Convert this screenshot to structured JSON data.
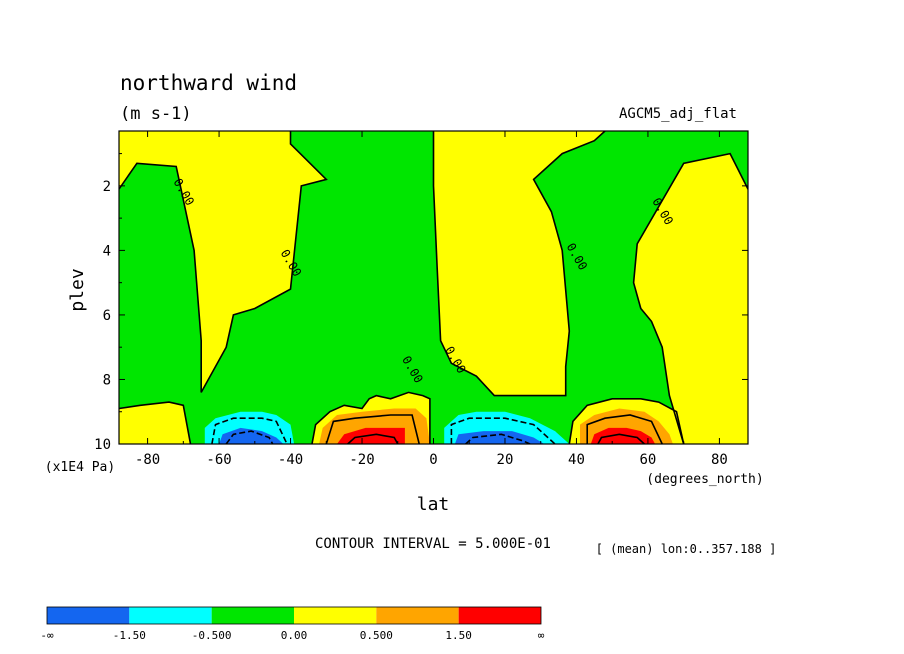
{
  "chart_data": {
    "type": "heatmap",
    "title": "northward wind",
    "units": "(m s-1)",
    "dataset": "AGCM5_adj_flat",
    "xlabel": "lat",
    "x_units": "(degrees_north)",
    "ylabel": "plev",
    "y_units": "(x1E4 Pa)",
    "xlim": [
      -88,
      88
    ],
    "ylim": [
      0.3,
      10
    ],
    "y_inverted": true,
    "x_ticks": [
      -80,
      -60,
      -40,
      -20,
      0,
      20,
      40,
      60,
      80
    ],
    "x_tick_labels": [
      "-80",
      "-60",
      "-40",
      "-20",
      "0",
      "20",
      "40",
      "60",
      "80"
    ],
    "y_ticks": [
      2,
      4,
      6,
      8,
      10
    ],
    "y_tick_labels": [
      "2",
      "4",
      "6",
      "8",
      "10"
    ],
    "contour_interval_text": "CONTOUR INTERVAL = 5.000E-01",
    "mean_text": "[ (mean) lon:0..357.188 ]",
    "contour_labels": [
      {
        "text": "0.00",
        "lat": -70,
        "plev": 2.2
      },
      {
        "text": "0.00",
        "lat": -40,
        "plev": 4.4
      },
      {
        "text": "0.00",
        "lat": -6,
        "plev": 7.7
      },
      {
        "text": "0.00",
        "lat": 6,
        "plev": 7.4
      },
      {
        "text": "0.00",
        "lat": 40,
        "plev": 4.2
      },
      {
        "text": "0.00",
        "lat": 64,
        "plev": 2.8
      }
    ],
    "regions": [
      {
        "level": "pos",
        "points": [
          [
            -88,
            0.3
          ],
          [
            -40,
            0.3
          ],
          [
            -40,
            0.7
          ],
          [
            -30,
            1.8
          ],
          [
            -37,
            2.0
          ],
          [
            -40,
            5.2
          ],
          [
            -50,
            5.8
          ],
          [
            -56,
            6.0
          ],
          [
            -58,
            7.0
          ],
          [
            -65,
            8.4
          ],
          [
            -65,
            6.8
          ],
          [
            -67,
            4.0
          ],
          [
            -72,
            1.4
          ],
          [
            -83,
            1.3
          ],
          [
            -88,
            2.1
          ]
        ]
      },
      {
        "level": "pos",
        "points": [
          [
            0,
            0.3
          ],
          [
            0,
            2.0
          ],
          [
            1,
            4.5
          ],
          [
            2,
            6.8
          ],
          [
            5,
            7.5
          ],
          [
            12,
            7.9
          ],
          [
            17,
            8.5
          ],
          [
            28,
            8.5
          ],
          [
            33,
            8.5
          ],
          [
            37,
            8.5
          ],
          [
            37,
            7.6
          ],
          [
            38,
            6.5
          ],
          [
            36,
            4.0
          ],
          [
            33,
            2.8
          ],
          [
            28,
            1.8
          ],
          [
            36,
            1.0
          ],
          [
            45,
            0.6
          ],
          [
            48,
            0.3
          ]
        ]
      },
      {
        "level": "pos",
        "points": [
          [
            70,
            10
          ],
          [
            66,
            8.5
          ],
          [
            64,
            7.0
          ],
          [
            61,
            6.2
          ],
          [
            58,
            5.8
          ],
          [
            56,
            5.0
          ],
          [
            57,
            3.8
          ],
          [
            70,
            1.3
          ],
          [
            83,
            1.0
          ],
          [
            88,
            2.1
          ],
          [
            88,
            10
          ]
        ]
      },
      {
        "level": "pos",
        "points": [
          [
            -88,
            10
          ],
          [
            -88,
            8.9
          ],
          [
            -82,
            8.8
          ],
          [
            -74,
            8.7
          ],
          [
            -70,
            8.8
          ],
          [
            -68,
            10
          ]
        ]
      },
      {
        "level": "pos",
        "points": [
          [
            -34,
            10
          ],
          [
            -33,
            9.4
          ],
          [
            -29,
            9.0
          ],
          [
            -25,
            8.8
          ],
          [
            -20,
            8.9
          ],
          [
            -18,
            8.6
          ],
          [
            -16,
            8.5
          ],
          [
            -12,
            8.6
          ],
          [
            -7,
            8.4
          ],
          [
            -3,
            8.5
          ],
          [
            -1,
            8.6
          ],
          [
            -1,
            10
          ]
        ]
      },
      {
        "level": "pos",
        "points": [
          [
            38,
            10
          ],
          [
            39,
            9.3
          ],
          [
            43,
            8.8
          ],
          [
            50,
            8.6
          ],
          [
            58,
            8.6
          ],
          [
            63,
            8.7
          ],
          [
            68,
            9.0
          ],
          [
            70,
            10
          ]
        ]
      },
      {
        "level": "neg_mid",
        "points": [
          [
            -64,
            10
          ],
          [
            -64,
            9.5
          ],
          [
            -61,
            9.2
          ],
          [
            -54,
            9.0
          ],
          [
            -48,
            9.0
          ],
          [
            -44,
            9.1
          ],
          [
            -40,
            9.4
          ],
          [
            -39,
            10
          ]
        ]
      },
      {
        "level": "neg_strong",
        "points": [
          [
            -60,
            10
          ],
          [
            -59,
            9.7
          ],
          [
            -54,
            9.5
          ],
          [
            -48,
            9.6
          ],
          [
            -44,
            9.8
          ],
          [
            -42,
            10
          ]
        ]
      },
      {
        "level": "pos_mid",
        "points": [
          [
            -32,
            10
          ],
          [
            -31,
            9.5
          ],
          [
            -27,
            9.1
          ],
          [
            -20,
            9.0
          ],
          [
            -11,
            8.9
          ],
          [
            -5,
            8.9
          ],
          [
            -2,
            9.2
          ],
          [
            -1,
            10
          ]
        ]
      },
      {
        "level": "pos_strong",
        "points": [
          [
            -27,
            10
          ],
          [
            -25,
            9.7
          ],
          [
            -19,
            9.5
          ],
          [
            -12,
            9.5
          ],
          [
            -8,
            9.5
          ],
          [
            -8,
            10
          ]
        ]
      },
      {
        "level": "neg_mid",
        "points": [
          [
            3,
            10
          ],
          [
            3,
            9.5
          ],
          [
            7,
            9.1
          ],
          [
            12,
            9.0
          ],
          [
            20,
            9.0
          ],
          [
            27,
            9.2
          ],
          [
            34,
            9.6
          ],
          [
            38,
            10
          ]
        ]
      },
      {
        "level": "neg_strong",
        "points": [
          [
            6,
            10
          ],
          [
            7,
            9.7
          ],
          [
            14,
            9.6
          ],
          [
            22,
            9.6
          ],
          [
            28,
            9.8
          ],
          [
            31,
            10
          ]
        ]
      },
      {
        "level": "pos_mid",
        "points": [
          [
            41,
            10
          ],
          [
            41,
            9.4
          ],
          [
            45,
            9.1
          ],
          [
            52,
            8.9
          ],
          [
            59,
            9.0
          ],
          [
            63,
            9.3
          ],
          [
            66,
            9.7
          ],
          [
            67,
            10
          ]
        ]
      },
      {
        "level": "pos_strong",
        "points": [
          [
            44,
            10
          ],
          [
            45,
            9.7
          ],
          [
            49,
            9.5
          ],
          [
            54,
            9.5
          ],
          [
            58,
            9.6
          ],
          [
            61,
            9.8
          ],
          [
            62,
            10
          ]
        ]
      }
    ],
    "contour_lines": [
      {
        "style": "solid",
        "points": [
          [
            -40,
            0.3
          ],
          [
            -40,
            0.7
          ],
          [
            -30,
            1.8
          ],
          [
            -37,
            2.0
          ],
          [
            -40,
            5.2
          ],
          [
            -50,
            5.8
          ],
          [
            -56,
            6.0
          ],
          [
            -58,
            7.0
          ],
          [
            -65,
            8.4
          ],
          [
            -65,
            6.8
          ],
          [
            -67,
            4.0
          ],
          [
            -72,
            1.4
          ],
          [
            -83,
            1.3
          ],
          [
            -88,
            2.1
          ]
        ]
      },
      {
        "style": "solid",
        "points": [
          [
            0,
            0.3
          ],
          [
            0,
            2.0
          ],
          [
            1,
            4.5
          ],
          [
            2,
            6.8
          ],
          [
            5,
            7.5
          ],
          [
            12,
            7.9
          ],
          [
            17,
            8.5
          ],
          [
            28,
            8.5
          ],
          [
            33,
            8.5
          ],
          [
            37,
            8.5
          ],
          [
            37,
            7.6
          ],
          [
            38,
            6.5
          ],
          [
            36,
            4.0
          ],
          [
            33,
            2.8
          ],
          [
            28,
            1.8
          ],
          [
            36,
            1.0
          ],
          [
            45,
            0.6
          ],
          [
            48,
            0.3
          ]
        ]
      },
      {
        "style": "solid",
        "points": [
          [
            70,
            10
          ],
          [
            66,
            8.5
          ],
          [
            64,
            7.0
          ],
          [
            61,
            6.2
          ],
          [
            58,
            5.8
          ],
          [
            56,
            5.0
          ],
          [
            57,
            3.8
          ],
          [
            70,
            1.3
          ],
          [
            83,
            1.0
          ],
          [
            88,
            2.1
          ]
        ]
      },
      {
        "style": "solid",
        "points": [
          [
            -88,
            8.9
          ],
          [
            -82,
            8.8
          ],
          [
            -74,
            8.7
          ],
          [
            -70,
            8.8
          ],
          [
            -68,
            10
          ]
        ]
      },
      {
        "style": "solid",
        "points": [
          [
            -34,
            10
          ],
          [
            -33,
            9.4
          ],
          [
            -29,
            9.0
          ],
          [
            -25,
            8.8
          ],
          [
            -20,
            8.9
          ],
          [
            -18,
            8.6
          ],
          [
            -16,
            8.5
          ],
          [
            -12,
            8.6
          ],
          [
            -7,
            8.4
          ],
          [
            -3,
            8.5
          ],
          [
            -1,
            8.6
          ],
          [
            -1,
            10
          ]
        ]
      },
      {
        "style": "solid",
        "points": [
          [
            38,
            10
          ],
          [
            39,
            9.3
          ],
          [
            43,
            8.8
          ],
          [
            50,
            8.6
          ],
          [
            58,
            8.6
          ],
          [
            63,
            8.7
          ],
          [
            68,
            9.0
          ],
          [
            70,
            10
          ]
        ]
      },
      {
        "style": "dashed",
        "points": [
          [
            -62,
            10
          ],
          [
            -61,
            9.4
          ],
          [
            -56,
            9.2
          ],
          [
            -48,
            9.2
          ],
          [
            -44,
            9.3
          ],
          [
            -41,
            10
          ]
        ]
      },
      {
        "style": "dashed",
        "points": [
          [
            -58,
            10
          ],
          [
            -56,
            9.7
          ],
          [
            -51,
            9.6
          ],
          [
            -46,
            9.8
          ],
          [
            -45,
            10
          ]
        ]
      },
      {
        "style": "solid",
        "points": [
          [
            -30,
            10
          ],
          [
            -28,
            9.3
          ],
          [
            -22,
            9.2
          ],
          [
            -12,
            9.1
          ],
          [
            -6,
            9.1
          ],
          [
            -4,
            10
          ]
        ]
      },
      {
        "style": "solid",
        "points": [
          [
            -24,
            10
          ],
          [
            -22,
            9.8
          ],
          [
            -16,
            9.7
          ],
          [
            -11,
            9.8
          ],
          [
            -10,
            10
          ]
        ]
      },
      {
        "style": "dashed",
        "points": [
          [
            5,
            10
          ],
          [
            5,
            9.4
          ],
          [
            10,
            9.2
          ],
          [
            20,
            9.2
          ],
          [
            28,
            9.4
          ],
          [
            34,
            10
          ]
        ]
      },
      {
        "style": "dashed",
        "points": [
          [
            9,
            10
          ],
          [
            11,
            9.8
          ],
          [
            19,
            9.7
          ],
          [
            25,
            9.9
          ],
          [
            27,
            10
          ]
        ]
      },
      {
        "style": "solid",
        "points": [
          [
            43,
            10
          ],
          [
            43,
            9.4
          ],
          [
            48,
            9.2
          ],
          [
            55,
            9.1
          ],
          [
            61,
            9.3
          ],
          [
            64,
            10
          ]
        ]
      },
      {
        "style": "solid",
        "points": [
          [
            46,
            10
          ],
          [
            47,
            9.8
          ],
          [
            52,
            9.7
          ],
          [
            57,
            9.8
          ],
          [
            59,
            10
          ]
        ]
      }
    ],
    "colorbar": {
      "colors": [
        "#1466f0",
        "#00ffff",
        "#00e600",
        "#ffff00",
        "#ffa500",
        "#ff0000"
      ],
      "labels": [
        "-∞",
        "-1.50",
        "-0.500",
        "0.00",
        "0.500",
        "1.50",
        "∞"
      ]
    },
    "background_level": "neg",
    "level_colors": {
      "neg_strong": "#1466f0",
      "neg_mid": "#00ffff",
      "neg": "#00e600",
      "pos": "#ffff00",
      "pos_mid": "#ffa500",
      "pos_strong": "#ff0000"
    }
  }
}
